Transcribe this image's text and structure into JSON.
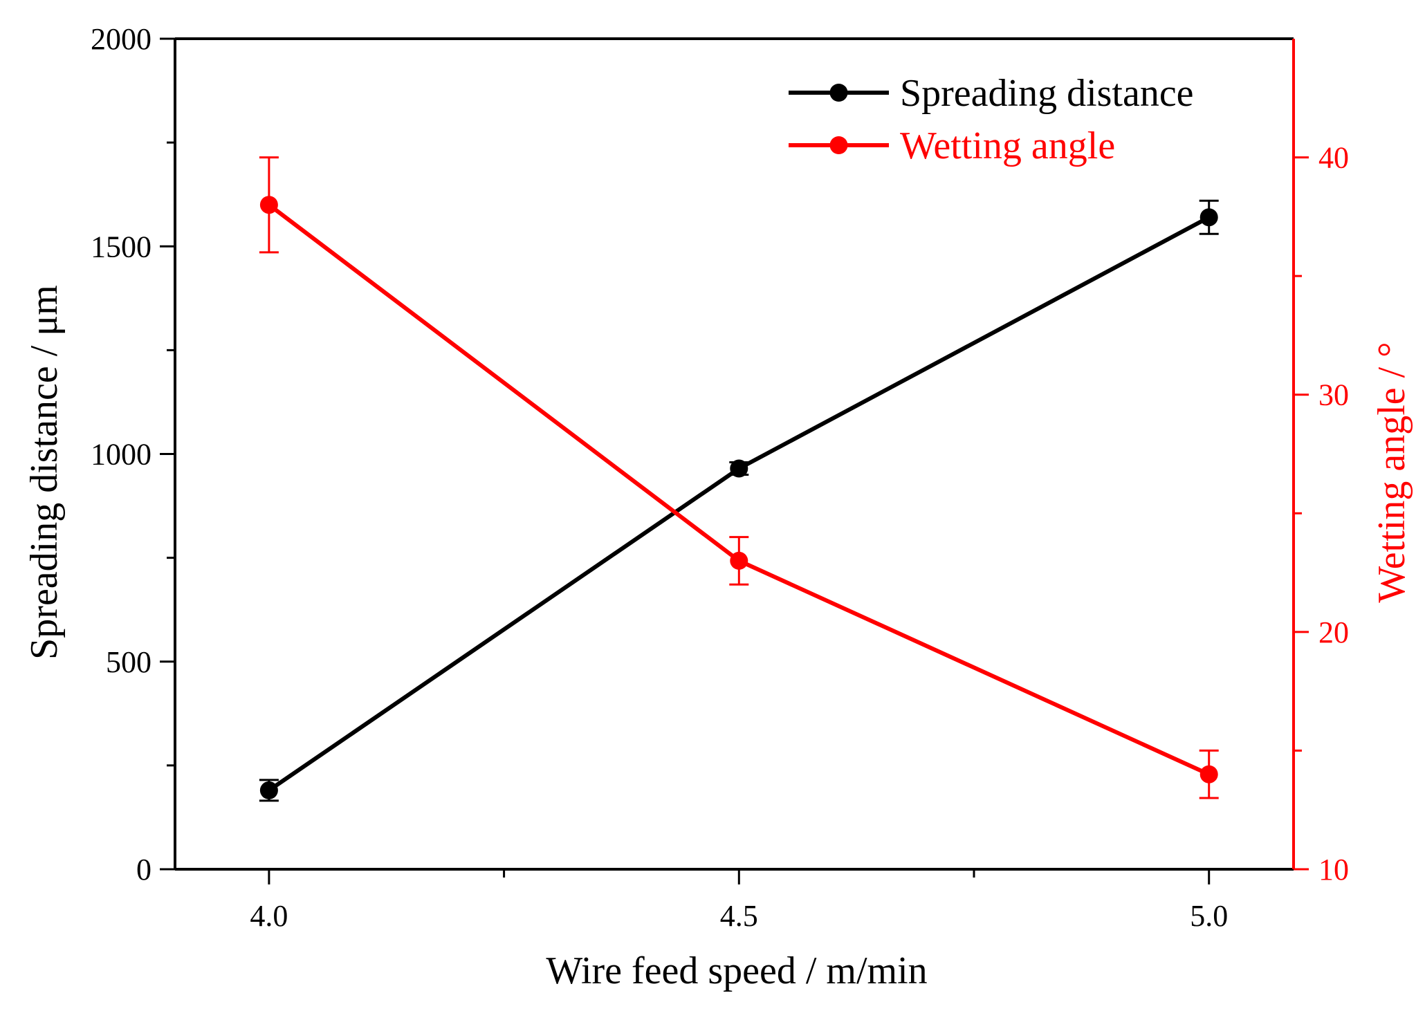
{
  "colors": {
    "series1": "#000000",
    "series2": "#ff0000",
    "axis": "#000000",
    "axis_right": "#ff0000",
    "background": "#ffffff"
  },
  "chart_data": {
    "type": "line",
    "title": "",
    "xlabel": "Wire feed speed / m/min",
    "ylabel": "Spreading distance / μm",
    "ylabel_right": "Wetting angle / °",
    "xlim": [
      3.9,
      5.09
    ],
    "ylim": [
      0,
      2000
    ],
    "ylim_right": [
      10,
      45
    ],
    "x_ticks": [
      4.0,
      4.5,
      5.0
    ],
    "x_tick_labels": [
      "4.0",
      "4.5",
      "5.0"
    ],
    "x_minor_ticks": [
      4.25,
      4.75
    ],
    "y_ticks": [
      0,
      500,
      1000,
      1500,
      2000
    ],
    "y_tick_labels": [
      "0",
      "500",
      "1000",
      "1500",
      "2000"
    ],
    "y_minor_ticks": [
      250,
      750,
      1250,
      1750
    ],
    "y_ticks_right": [
      10,
      20,
      30,
      40
    ],
    "y_tick_labels_right": [
      "10",
      "20",
      "30",
      "40"
    ],
    "y_minor_ticks_right": [
      15,
      25,
      35
    ],
    "grid": false,
    "legend_position": "top-right",
    "series": [
      {
        "name": "Spreading distance",
        "axis": "left",
        "x": [
          4.0,
          4.5,
          5.0
        ],
        "y": [
          190,
          965,
          1570
        ],
        "err": [
          25,
          15,
          40
        ]
      },
      {
        "name": "Wetting angle",
        "axis": "right",
        "x": [
          4.0,
          4.5,
          5.0
        ],
        "y": [
          38,
          23,
          14
        ],
        "err": [
          2,
          1,
          1
        ]
      }
    ]
  }
}
